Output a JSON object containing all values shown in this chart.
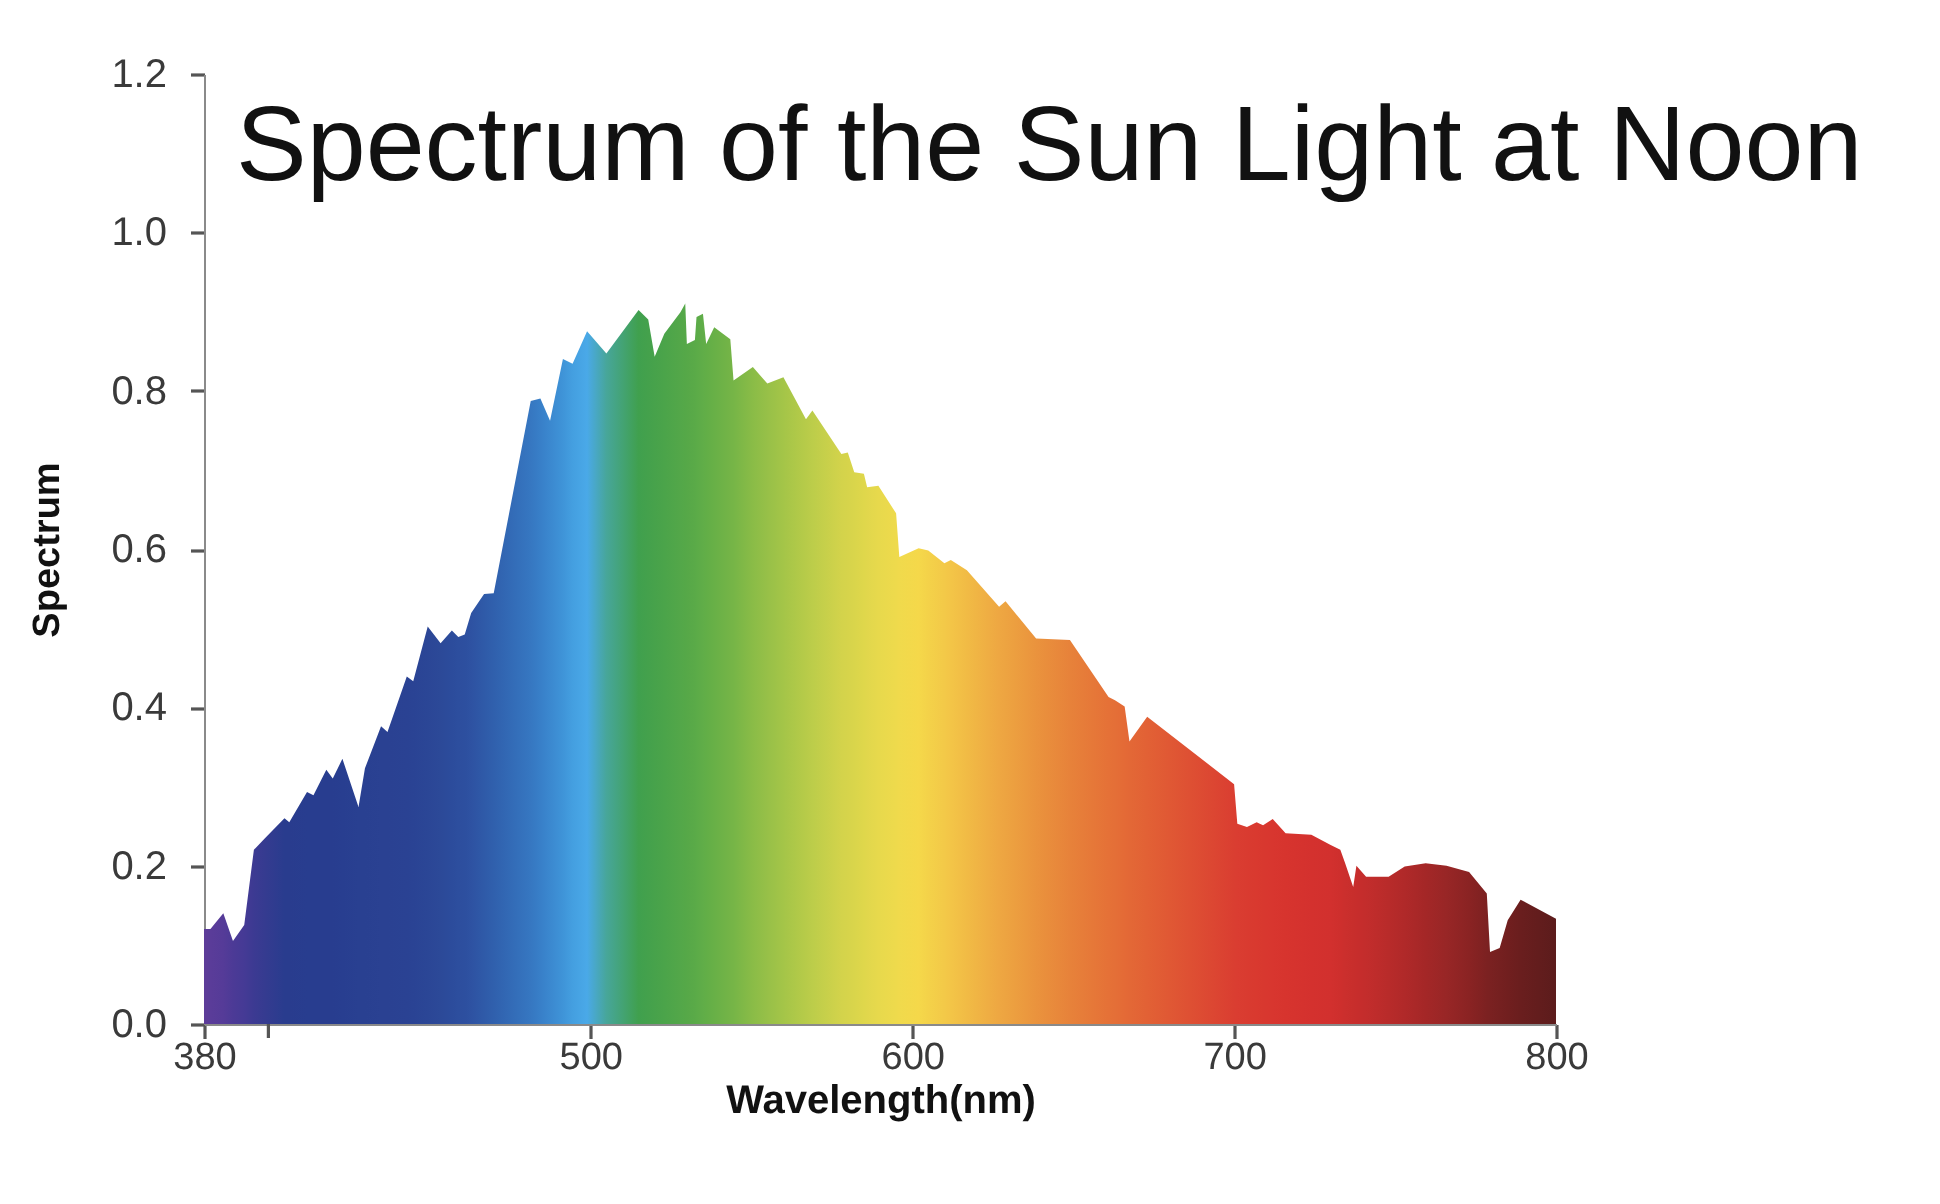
{
  "chart_data": {
    "type": "area",
    "title": "Spectrum of the Sun Light at Noon",
    "xlabel": "Wavelength(nm)",
    "ylabel": "Spectrum",
    "x": [
      380,
      382,
      386,
      389,
      392.5,
      395.5,
      399,
      405,
      406.5,
      412,
      414,
      418,
      420,
      423,
      428,
      430,
      435,
      437,
      443,
      445,
      449.5,
      453.5,
      457,
      459,
      461,
      463,
      467,
      470,
      481.5,
      484.5,
      487.5,
      491.5,
      494.5,
      499,
      505,
      515,
      518,
      520,
      523,
      528,
      529.5,
      530,
      532.5,
      533,
      535,
      536,
      538.5,
      543.5,
      544.5,
      550.5,
      555,
      560,
      567,
      569,
      578,
      580,
      582,
      585,
      586,
      589.5,
      595,
      596,
      602,
      605,
      610,
      612,
      617,
      627,
      629,
      638.5,
      649,
      661,
      663,
      666,
      667.5,
      673,
      700,
      701,
      704,
      707,
      709,
      712,
      716,
      724,
      730,
      733,
      734.5,
      737,
      738,
      741,
      748,
      753,
      759.5,
      766,
      773,
      778.5,
      779.5,
      782.5,
      785,
      789,
      800
    ],
    "values": [
      0.12,
      0.12,
      0.14,
      0.105,
      0.125,
      0.22,
      0.235,
      0.26,
      0.255,
      0.293,
      0.289,
      0.321,
      0.31,
      0.335,
      0.274,
      0.323,
      0.376,
      0.369,
      0.439,
      0.433,
      0.502,
      0.481,
      0.497,
      0.489,
      0.492,
      0.519,
      0.543,
      0.544,
      0.787,
      0.79,
      0.762,
      0.84,
      0.834,
      0.875,
      0.847,
      0.902,
      0.89,
      0.843,
      0.872,
      0.899,
      0.91,
      0.859,
      0.864,
      0.893,
      0.897,
      0.859,
      0.88,
      0.865,
      0.813,
      0.83,
      0.809,
      0.817,
      0.764,
      0.775,
      0.72,
      0.722,
      0.697,
      0.695,
      0.678,
      0.68,
      0.645,
      0.59,
      0.601,
      0.598,
      0.582,
      0.586,
      0.573,
      0.527,
      0.534,
      0.487,
      0.485,
      0.413,
      0.409,
      0.401,
      0.357,
      0.388,
      0.303,
      0.253,
      0.249,
      0.255,
      0.251,
      0.259,
      0.241,
      0.239,
      0.226,
      0.22,
      0.203,
      0.173,
      0.2,
      0.186,
      0.186,
      0.199,
      0.203,
      0.2,
      0.192,
      0.165,
      0.091,
      0.096,
      0.131,
      0.157,
      0.133
    ],
    "colors": [
      "#5e3c99",
      "#5a3c99",
      "#553b98",
      "#4c3a96",
      "#453a95",
      "#3c3a92",
      "#353b90",
      "#293c8e",
      "#293c8e",
      "#283d8f",
      "#283d8f",
      "#283d8f",
      "#283d8f",
      "#283e90",
      "#294091",
      "#294091",
      "#2a4192",
      "#2a4192",
      "#2a4293",
      "#2a4394",
      "#2b4696",
      "#2c4998",
      "#2c4c9c",
      "#2d4e9e",
      "#2d4f9f",
      "#2e52a2",
      "#2f5aa8",
      "#3060ad",
      "#3677c1",
      "#387fc8",
      "#3b88cf",
      "#3f94d8",
      "#449fe0",
      "#4aa9e8",
      "#47a69a",
      "#40a04e",
      "#44a14c",
      "#47a24b",
      "#4ba44a",
      "#53a749",
      "#55a848",
      "#56a848",
      "#5aaa48",
      "#5bab48",
      "#60ad48",
      "#62ae47",
      "#68b047",
      "#74b447",
      "#76b547",
      "#8abc47",
      "#97c048",
      "#a4c548",
      "#b7cb49",
      "#bccd4a",
      "#d3d34b",
      "#d6d44b",
      "#d9d54b",
      "#dfd74b",
      "#e1d74c",
      "#e7d94c",
      "#eeda4c",
      "#f0da4c",
      "#f5d84a",
      "#f4d249",
      "#f3c948",
      "#f3c547",
      "#f1bb45",
      "#eea742",
      "#eda441",
      "#ea933d",
      "#e7823a",
      "#e57137",
      "#e46f37",
      "#e46a36",
      "#e36836",
      "#e26135",
      "#da3e31",
      "#da3d31",
      "#d93b30",
      "#d9392f",
      "#d8382f",
      "#d8362f",
      "#d7342e",
      "#d4312e",
      "#d2302e",
      "#ce2f2d",
      "#cb2f2d",
      "#c82e2c",
      "#c72d2c",
      "#c32d2c",
      "#b82b2a",
      "#b02929",
      "#a42727",
      "#982626",
      "#8a2323",
      "#7c2121",
      "#7a2121",
      "#752020",
      "#711f1f",
      "#6a1e1e",
      "#5c1c1c"
    ],
    "xlim": [
      380,
      800
    ],
    "ylim": [
      0,
      1.2
    ],
    "xticks": [
      380,
      {
        "value": 400,
        "label": null
      },
      500,
      600,
      700,
      800
    ],
    "yticks": [
      {
        "value": 0,
        "label": "0.0"
      },
      0.2,
      0.4,
      0.6,
      0.8,
      {
        "value": 1,
        "label": "1.0"
      },
      1.2
    ],
    "grid": false
  }
}
